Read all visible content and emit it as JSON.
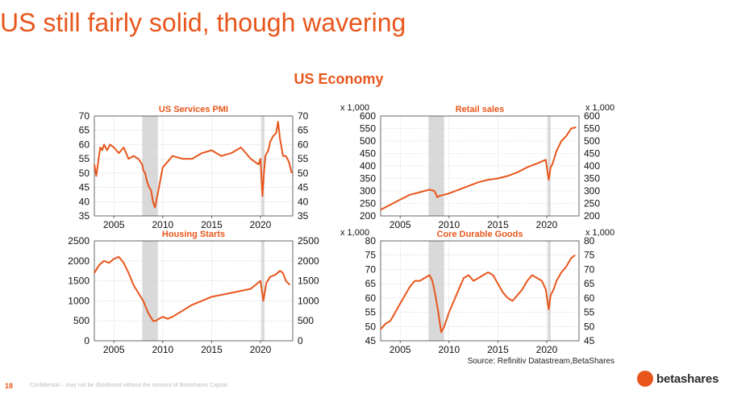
{
  "slide": {
    "title": "US still fairly solid, though wavering",
    "section_title": "US Economy",
    "source": "Source: Refinitiv Datastream,BetaShares",
    "page_number": "18",
    "confidential": "Confidential – may not be distributed without the consent of Betashares Capital",
    "brand": "betashares",
    "accent_color": "#e8561c",
    "recession_shade_color": "#d9d9d9"
  },
  "chart_data": [
    {
      "type": "line",
      "title": "US Services PMI",
      "unit_label": "",
      "xlim": [
        2003,
        2023.3
      ],
      "ylim": [
        35,
        70
      ],
      "xticks": [
        2005,
        2010,
        2015,
        2020
      ],
      "yticks": [
        35,
        40,
        45,
        50,
        55,
        60,
        65,
        70
      ],
      "shaded": [
        [
          2007.9,
          2009.5
        ],
        [
          2020.1,
          2020.4
        ]
      ],
      "grid": true,
      "series": [
        {
          "x": [
            2003.0,
            2003.2,
            2003.4,
            2003.6,
            2003.8,
            2004.0,
            2004.3,
            2004.6,
            2005.0,
            2005.5,
            2006.0,
            2006.5,
            2007.0,
            2007.5,
            2007.9,
            2008.0,
            2008.2,
            2008.4,
            2008.6,
            2008.8,
            2009.0,
            2009.2,
            2009.5,
            2010.0,
            2010.5,
            2011.0,
            2012.0,
            2013.0,
            2014.0,
            2015.0,
            2016.0,
            2017.0,
            2018.0,
            2019.0,
            2019.8,
            2020.0,
            2020.2,
            2020.35,
            2020.5,
            2020.8,
            2021.0,
            2021.3,
            2021.6,
            2021.8,
            2022.0,
            2022.3,
            2022.6,
            2022.9,
            2023.2
          ],
          "y": [
            53,
            49,
            54,
            59,
            58,
            60,
            58,
            60,
            59,
            57,
            59,
            55,
            56,
            55,
            53,
            51,
            50,
            47,
            45,
            44,
            40,
            38,
            43,
            52,
            54,
            56,
            55,
            55,
            57,
            58,
            56,
            57,
            59,
            55,
            53,
            55,
            42,
            50,
            56,
            58,
            61,
            63,
            64,
            68,
            62,
            56,
            56,
            54,
            50
          ]
        }
      ]
    },
    {
      "type": "line",
      "title": "Retail sales",
      "unit_label": "x 1,000",
      "xlim": [
        2003,
        2023.3
      ],
      "ylim": [
        200,
        600
      ],
      "xticks": [
        2005,
        2010,
        2015,
        2020
      ],
      "yticks": [
        200,
        250,
        300,
        350,
        400,
        450,
        500,
        550,
        600
      ],
      "shaded": [
        [
          2007.9,
          2009.5
        ],
        [
          2020.1,
          2020.4
        ]
      ],
      "grid": true,
      "series": [
        {
          "x": [
            2003.0,
            2004.0,
            2005.0,
            2006.0,
            2007.0,
            2008.0,
            2008.5,
            2008.8,
            2009.0,
            2009.5,
            2010.0,
            2011.0,
            2012.0,
            2013.0,
            2014.0,
            2015.0,
            2016.0,
            2017.0,
            2018.0,
            2019.0,
            2019.9,
            2020.2,
            2020.4,
            2020.6,
            2021.0,
            2021.5,
            2022.0,
            2022.5,
            2023.0
          ],
          "y": [
            225,
            245,
            265,
            285,
            295,
            305,
            300,
            275,
            280,
            285,
            290,
            305,
            320,
            335,
            345,
            350,
            360,
            375,
            395,
            410,
            425,
            345,
            395,
            410,
            460,
            500,
            520,
            550,
            555
          ]
        }
      ]
    },
    {
      "type": "line",
      "title": "Housing Starts",
      "unit_label": "",
      "xlim": [
        2003,
        2023.3
      ],
      "ylim": [
        0,
        2500
      ],
      "xticks": [
        2005,
        2010,
        2015,
        2020
      ],
      "yticks": [
        0,
        500,
        1000,
        1500,
        2000,
        2500
      ],
      "shaded": [
        [
          2007.9,
          2009.5
        ],
        [
          2020.1,
          2020.4
        ]
      ],
      "grid": true,
      "series": [
        {
          "x": [
            2003.0,
            2003.5,
            2004.0,
            2004.5,
            2005.0,
            2005.5,
            2006.0,
            2006.5,
            2007.0,
            2007.5,
            2008.0,
            2008.5,
            2009.0,
            2009.3,
            2009.6,
            2010.0,
            2010.5,
            2011.0,
            2012.0,
            2013.0,
            2014.0,
            2015.0,
            2016.0,
            2017.0,
            2018.0,
            2019.0,
            2020.0,
            2020.3,
            2020.6,
            2021.0,
            2021.5,
            2022.0,
            2022.3,
            2022.6,
            2023.0
          ],
          "y": [
            1700,
            1900,
            2000,
            1950,
            2050,
            2100,
            1950,
            1700,
            1400,
            1200,
            1000,
            700,
            500,
            500,
            550,
            600,
            550,
            600,
            750,
            900,
            1000,
            1100,
            1150,
            1200,
            1250,
            1300,
            1500,
            1000,
            1450,
            1600,
            1650,
            1750,
            1700,
            1500,
            1400
          ]
        }
      ]
    },
    {
      "type": "line",
      "title": "Core Durable Goods",
      "unit_label": "x 1,000",
      "xlim": [
        2003,
        2023.3
      ],
      "ylim": [
        45,
        80
      ],
      "xticks": [
        2005,
        2010,
        2015,
        2020
      ],
      "yticks": [
        45,
        50,
        55,
        60,
        65,
        70,
        75,
        80
      ],
      "shaded": [
        [
          2007.9,
          2009.5
        ],
        [
          2020.1,
          2020.4
        ]
      ],
      "grid": true,
      "series": [
        {
          "x": [
            2003.0,
            2003.5,
            2004.0,
            2004.5,
            2005.0,
            2005.5,
            2006.0,
            2006.5,
            2007.0,
            2007.5,
            2008.0,
            2008.3,
            2008.6,
            2008.9,
            2009.2,
            2009.5,
            2010.0,
            2010.5,
            2011.0,
            2011.5,
            2012.0,
            2012.5,
            2013.0,
            2013.5,
            2014.0,
            2014.5,
            2015.0,
            2015.5,
            2016.0,
            2016.5,
            2017.0,
            2017.5,
            2018.0,
            2018.5,
            2019.0,
            2019.5,
            2019.9,
            2020.2,
            2020.4,
            2020.7,
            2021.0,
            2021.5,
            2022.0,
            2022.5,
            2022.9
          ],
          "y": [
            49,
            51,
            52,
            55,
            58,
            61,
            64,
            66,
            66,
            67,
            68,
            66,
            61,
            55,
            48,
            50,
            55,
            59,
            63,
            67,
            68,
            66,
            67,
            68,
            69,
            68,
            65,
            62,
            60,
            59,
            61,
            63,
            66,
            68,
            67,
            66,
            63,
            56,
            61,
            63,
            66,
            69,
            71,
            74,
            75
          ]
        }
      ]
    }
  ]
}
